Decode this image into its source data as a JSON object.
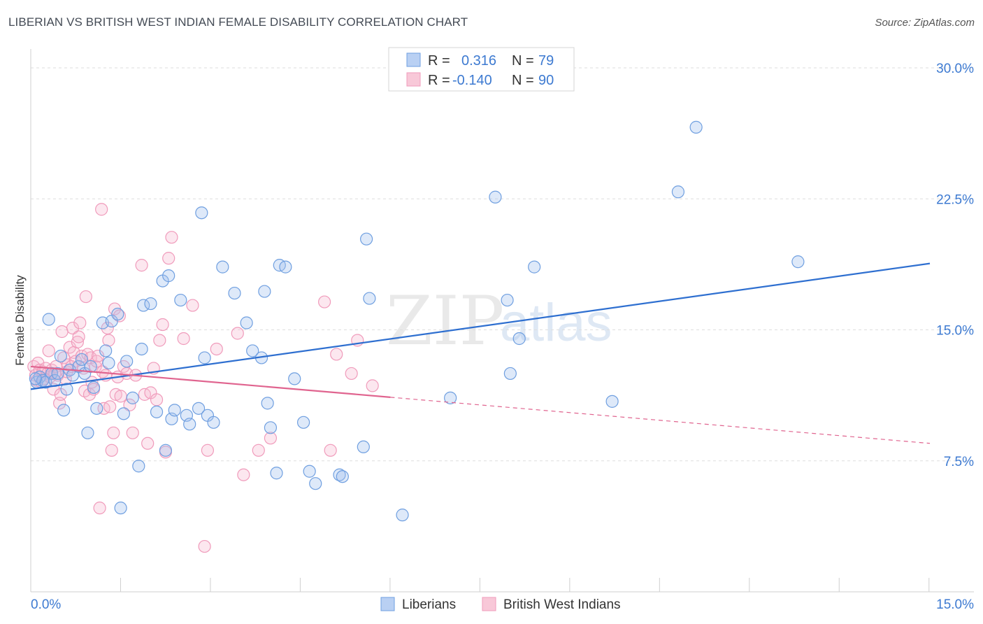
{
  "title": "LIBERIAN VS BRITISH WEST INDIAN FEMALE DISABILITY CORRELATION CHART",
  "source": "Source: ZipAtlas.com",
  "watermark": {
    "zip": "ZIP",
    "atlas": "atlas"
  },
  "colors": {
    "blue": "#6f9fe0",
    "pink": "#f09bbb",
    "blue_line": "#2e6fd0",
    "pink_line": "#e0648f"
  },
  "chart_data": {
    "type": "scatter",
    "title": "LIBERIAN VS BRITISH WEST INDIAN FEMALE DISABILITY CORRELATION CHART",
    "xlabel": "",
    "ylabel": "Female Disability",
    "xlim": [
      0,
      15
    ],
    "ylim": [
      0,
      31
    ],
    "x_tick_labels": {
      "left": "0.0%",
      "right": "15.0%"
    },
    "y_ticks": [
      {
        "value": 7.5,
        "label": "7.5%"
      },
      {
        "value": 15.0,
        "label": "15.0%"
      },
      {
        "value": 22.5,
        "label": "22.5%"
      },
      {
        "value": 30.0,
        "label": "30.0%"
      }
    ],
    "legend": [
      {
        "r_label": "R =",
        "r_value": "0.316",
        "n_label": "N =",
        "n_value": "79"
      },
      {
        "r_label": "R =",
        "r_value": "-0.140",
        "n_label": "N =",
        "n_value": "90"
      }
    ],
    "series": [
      {
        "name": "Liberians",
        "trend": {
          "x0": 0.0,
          "y0": 11.6,
          "x1": 15.0,
          "y1": 18.8,
          "dash_from": null
        },
        "points": [
          [
            0.1,
            12.0
          ],
          [
            0.15,
            12.3
          ],
          [
            0.2,
            12.1
          ],
          [
            0.25,
            12.0
          ],
          [
            0.3,
            15.6
          ],
          [
            0.35,
            12.5
          ],
          [
            0.4,
            12.1
          ],
          [
            0.5,
            13.5
          ],
          [
            0.55,
            10.4
          ],
          [
            0.6,
            11.6
          ],
          [
            0.65,
            12.7
          ],
          [
            0.7,
            12.4
          ],
          [
            0.8,
            12.9
          ],
          [
            0.85,
            13.3
          ],
          [
            0.9,
            12.5
          ],
          [
            0.95,
            9.1
          ],
          [
            1.0,
            12.9
          ],
          [
            1.05,
            11.7
          ],
          [
            1.1,
            10.5
          ],
          [
            1.2,
            15.4
          ],
          [
            1.25,
            13.8
          ],
          [
            1.3,
            13.1
          ],
          [
            1.35,
            15.5
          ],
          [
            1.45,
            15.9
          ],
          [
            1.5,
            4.8
          ],
          [
            1.55,
            10.2
          ],
          [
            1.6,
            13.2
          ],
          [
            1.7,
            11.1
          ],
          [
            1.8,
            7.2
          ],
          [
            1.85,
            13.9
          ],
          [
            1.88,
            16.4
          ],
          [
            2.0,
            16.5
          ],
          [
            2.1,
            10.3
          ],
          [
            2.2,
            17.8
          ],
          [
            2.25,
            8.1
          ],
          [
            2.3,
            18.1
          ],
          [
            2.35,
            9.9
          ],
          [
            2.4,
            10.4
          ],
          [
            2.5,
            16.7
          ],
          [
            2.6,
            10.1
          ],
          [
            2.65,
            9.6
          ],
          [
            2.8,
            10.5
          ],
          [
            2.85,
            21.7
          ],
          [
            2.9,
            13.4
          ],
          [
            2.95,
            10.1
          ],
          [
            3.05,
            9.7
          ],
          [
            3.2,
            18.6
          ],
          [
            3.4,
            17.1
          ],
          [
            3.6,
            15.4
          ],
          [
            3.7,
            13.8
          ],
          [
            3.85,
            13.4
          ],
          [
            3.9,
            17.2
          ],
          [
            3.95,
            10.8
          ],
          [
            4.0,
            9.4
          ],
          [
            4.1,
            6.8
          ],
          [
            4.15,
            18.7
          ],
          [
            4.25,
            18.6
          ],
          [
            4.4,
            12.2
          ],
          [
            4.55,
            9.7
          ],
          [
            4.65,
            6.9
          ],
          [
            4.75,
            6.2
          ],
          [
            5.15,
            6.7
          ],
          [
            5.2,
            6.6
          ],
          [
            5.55,
            8.3
          ],
          [
            5.6,
            20.2
          ],
          [
            5.65,
            16.8
          ],
          [
            6.2,
            4.4
          ],
          [
            7.0,
            11.1
          ],
          [
            7.75,
            22.6
          ],
          [
            7.95,
            16.7
          ],
          [
            8.0,
            12.5
          ],
          [
            8.15,
            14.5
          ],
          [
            8.4,
            18.6
          ],
          [
            9.7,
            10.9
          ],
          [
            10.8,
            22.9
          ],
          [
            11.1,
            26.6
          ],
          [
            12.8,
            18.9
          ],
          [
            0.08,
            12.2
          ],
          [
            0.45,
            12.5
          ]
        ]
      },
      {
        "name": "British West Indians",
        "trend": {
          "x0": 0.0,
          "y0": 12.9,
          "x1": 15.0,
          "y1": 8.5,
          "dash_from": 6.0
        },
        "points": [
          [
            0.05,
            12.9
          ],
          [
            0.08,
            12.4
          ],
          [
            0.1,
            12.1
          ],
          [
            0.12,
            13.1
          ],
          [
            0.15,
            12.7
          ],
          [
            0.18,
            12.0
          ],
          [
            0.2,
            12.6
          ],
          [
            0.22,
            12.2
          ],
          [
            0.25,
            12.8
          ],
          [
            0.28,
            12.5
          ],
          [
            0.3,
            13.8
          ],
          [
            0.32,
            12.3
          ],
          [
            0.35,
            12.7
          ],
          [
            0.38,
            11.6
          ],
          [
            0.4,
            12.5
          ],
          [
            0.42,
            12.9
          ],
          [
            0.45,
            12.4
          ],
          [
            0.48,
            10.8
          ],
          [
            0.5,
            11.3
          ],
          [
            0.52,
            14.9
          ],
          [
            0.55,
            13.4
          ],
          [
            0.58,
            12.2
          ],
          [
            0.6,
            12.6
          ],
          [
            0.62,
            13.0
          ],
          [
            0.65,
            14.0
          ],
          [
            0.68,
            12.9
          ],
          [
            0.7,
            15.1
          ],
          [
            0.72,
            13.7
          ],
          [
            0.75,
            13.2
          ],
          [
            0.78,
            14.3
          ],
          [
            0.8,
            14.6
          ],
          [
            0.82,
            15.4
          ],
          [
            0.85,
            13.5
          ],
          [
            0.88,
            12.8
          ],
          [
            0.9,
            11.5
          ],
          [
            0.92,
            16.9
          ],
          [
            0.95,
            13.6
          ],
          [
            0.98,
            11.3
          ],
          [
            1.0,
            13.4
          ],
          [
            1.02,
            12.0
          ],
          [
            1.05,
            11.6
          ],
          [
            1.08,
            12.9
          ],
          [
            1.1,
            13.2
          ],
          [
            1.12,
            13.5
          ],
          [
            1.15,
            4.8
          ],
          [
            1.18,
            21.9
          ],
          [
            1.2,
            12.6
          ],
          [
            1.22,
            10.5
          ],
          [
            1.25,
            12.4
          ],
          [
            1.28,
            15.1
          ],
          [
            1.3,
            14.4
          ],
          [
            1.32,
            10.6
          ],
          [
            1.35,
            8.1
          ],
          [
            1.38,
            9.1
          ],
          [
            1.4,
            16.2
          ],
          [
            1.42,
            11.3
          ],
          [
            1.45,
            12.3
          ],
          [
            1.48,
            15.8
          ],
          [
            1.5,
            11.2
          ],
          [
            1.55,
            12.9
          ],
          [
            1.6,
            12.5
          ],
          [
            1.65,
            10.7
          ],
          [
            1.7,
            9.1
          ],
          [
            1.75,
            12.4
          ],
          [
            1.85,
            18.7
          ],
          [
            1.9,
            11.3
          ],
          [
            1.95,
            8.5
          ],
          [
            2.0,
            11.4
          ],
          [
            2.05,
            12.8
          ],
          [
            2.1,
            11.0
          ],
          [
            2.15,
            14.4
          ],
          [
            2.2,
            15.3
          ],
          [
            2.25,
            8.0
          ],
          [
            2.3,
            19.1
          ],
          [
            2.35,
            20.3
          ],
          [
            2.55,
            14.5
          ],
          [
            2.7,
            16.4
          ],
          [
            2.9,
            2.6
          ],
          [
            2.95,
            8.1
          ],
          [
            3.1,
            13.9
          ],
          [
            3.45,
            14.8
          ],
          [
            3.55,
            6.7
          ],
          [
            3.8,
            8.1
          ],
          [
            4.0,
            8.8
          ],
          [
            4.9,
            16.6
          ],
          [
            5.0,
            8.1
          ],
          [
            5.1,
            13.6
          ],
          [
            5.35,
            12.5
          ],
          [
            5.45,
            14.4
          ],
          [
            5.7,
            11.8
          ]
        ]
      }
    ]
  }
}
